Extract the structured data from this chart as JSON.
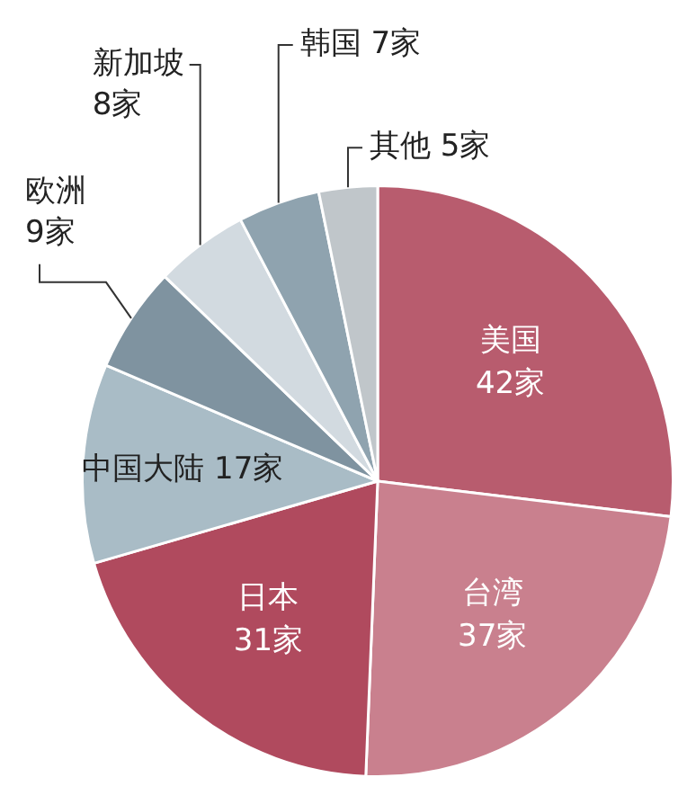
{
  "chart_data": {
    "type": "pie",
    "categories": [
      "美国",
      "台湾",
      "日本",
      "中国大陆",
      "欧洲",
      "新加坡",
      "韩国",
      "其他"
    ],
    "values": [
      42,
      37,
      31,
      17,
      9,
      8,
      7,
      5
    ],
    "value_labels": [
      "42家",
      "37家",
      "31家",
      "17家",
      "9家",
      "8家",
      "7家",
      "5家"
    ],
    "colors": [
      "#b85c6e",
      "#c9808e",
      "#b04a5e",
      "#a9bcc6",
      "#7f93a0",
      "#d2dae0",
      "#8fa3af",
      "#c0c6ca"
    ]
  }
}
